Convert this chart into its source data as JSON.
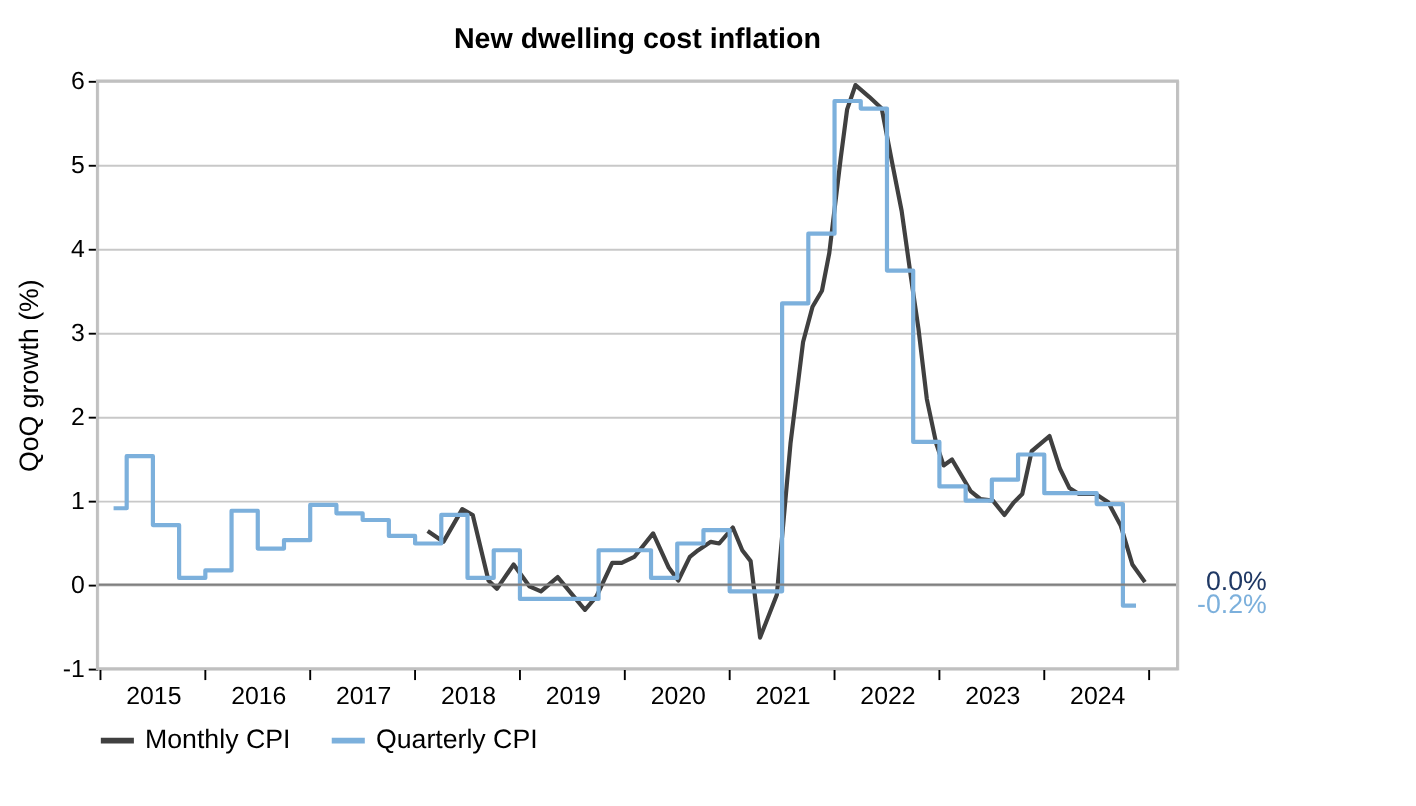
{
  "chart_data": {
    "type": "line",
    "title": "New dwelling cost inflation",
    "ylabel": "QoQ growth (%)",
    "xlim": [
      2014.97,
      2025.27
    ],
    "xticks": [
      {
        "value": 2015,
        "label": null
      },
      {
        "value": 2015.5,
        "label": "2015"
      },
      {
        "value": 2016,
        "label": null
      },
      {
        "value": 2016.5,
        "label": "2016"
      },
      {
        "value": 2017,
        "label": null
      },
      {
        "value": 2017.5,
        "label": "2017"
      },
      {
        "value": 2018,
        "label": null
      },
      {
        "value": 2018.5,
        "label": "2018"
      },
      {
        "value": 2019,
        "label": null
      },
      {
        "value": 2019.5,
        "label": "2019"
      },
      {
        "value": 2020,
        "label": null
      },
      {
        "value": 2020.5,
        "label": "2020"
      },
      {
        "value": 2021,
        "label": null
      },
      {
        "value": 2021.5,
        "label": "2021"
      },
      {
        "value": 2022,
        "label": null
      },
      {
        "value": 2022.5,
        "label": "2022"
      },
      {
        "value": 2023,
        "label": null
      },
      {
        "value": 2023.5,
        "label": "2023"
      },
      {
        "value": 2024,
        "label": null
      },
      {
        "value": 2024.5,
        "label": "2024"
      },
      {
        "value": 2025,
        "label": null
      }
    ],
    "ylim": [
      -1,
      6
    ],
    "yticks": [
      -1,
      0,
      1,
      2,
      3,
      4,
      5,
      6
    ],
    "grid": "y",
    "legend": "bottom",
    "ref_lines": [
      {
        "axis": "y",
        "value": 0,
        "color": "#808080"
      }
    ],
    "series": [
      {
        "name": "Monthly CPI",
        "color": "#404040",
        "x": [
          2018.12,
          2018.27,
          2018.45,
          2018.55,
          2018.7,
          2018.78,
          2018.94,
          2019.09,
          2019.2,
          2019.36,
          2019.62,
          2019.73,
          2019.88,
          2019.97,
          2020.09,
          2020.27,
          2020.42,
          2020.51,
          2020.62,
          2020.7,
          2020.82,
          2020.9,
          2021.03,
          2021.12,
          2021.2,
          2021.29,
          2021.45,
          2021.58,
          2021.7,
          2021.79,
          2021.88,
          2021.95,
          2022.06,
          2022.12,
          2022.2,
          2022.33,
          2022.45,
          2022.55,
          2022.64,
          2022.73,
          2022.8,
          2022.88,
          2022.97,
          2023.04,
          2023.12,
          2023.21,
          2023.3,
          2023.39,
          2023.51,
          2023.62,
          2023.71,
          2023.79,
          2023.88,
          2024.05,
          2024.15,
          2024.24,
          2024.33,
          2024.49,
          2024.61,
          2024.73,
          2024.84,
          2024.96
        ],
        "values": [
          0.64,
          0.51,
          0.9,
          0.83,
          0.05,
          -0.05,
          0.24,
          -0.02,
          -0.08,
          0.09,
          -0.3,
          -0.14,
          0.26,
          0.26,
          0.33,
          0.61,
          0.2,
          0.05,
          0.33,
          0.41,
          0.51,
          0.49,
          0.68,
          0.41,
          0.28,
          -0.63,
          -0.12,
          1.68,
          2.89,
          3.31,
          3.5,
          3.95,
          5.09,
          5.66,
          5.95,
          5.81,
          5.67,
          5.02,
          4.45,
          3.65,
          3.05,
          2.21,
          1.68,
          1.42,
          1.49,
          1.3,
          1.11,
          1.02,
          1.0,
          0.83,
          0.98,
          1.08,
          1.59,
          1.77,
          1.38,
          1.15,
          1.08,
          1.08,
          0.98,
          0.7,
          0.24,
          0.03
        ]
      },
      {
        "name": "Quarterly CPI",
        "color": "#7cb0dc",
        "type": "step",
        "x": [
          2015.125,
          2015.375,
          2015.625,
          2015.875,
          2016.125,
          2016.375,
          2016.625,
          2016.875,
          2017.125,
          2017.375,
          2017.625,
          2017.875,
          2018.125,
          2018.375,
          2018.625,
          2018.875,
          2019.125,
          2019.375,
          2019.625,
          2019.875,
          2020.125,
          2020.375,
          2020.625,
          2020.875,
          2021.125,
          2021.375,
          2021.625,
          2021.875,
          2022.125,
          2022.375,
          2022.625,
          2022.875,
          2023.125,
          2023.375,
          2023.625,
          2023.875,
          2024.125,
          2024.375,
          2024.625,
          2024.875
        ],
        "values": [
          0.91,
          1.53,
          0.71,
          0.08,
          0.17,
          0.88,
          0.43,
          0.53,
          0.95,
          0.85,
          0.77,
          0.58,
          0.49,
          0.83,
          0.08,
          0.41,
          -0.17,
          -0.17,
          -0.17,
          0.41,
          0.41,
          0.08,
          0.49,
          0.65,
          -0.08,
          -0.08,
          3.35,
          4.18,
          5.76,
          5.67,
          3.74,
          1.7,
          1.17,
          1.0,
          1.25,
          1.55,
          1.09,
          1.09,
          0.96,
          -0.25
        ]
      }
    ],
    "annotations": [
      {
        "text": "0.0%",
        "x": 2024.96,
        "y": 0.03
      },
      {
        "text": "-0.2%",
        "x": 2024.875,
        "y": -0.25
      }
    ]
  }
}
